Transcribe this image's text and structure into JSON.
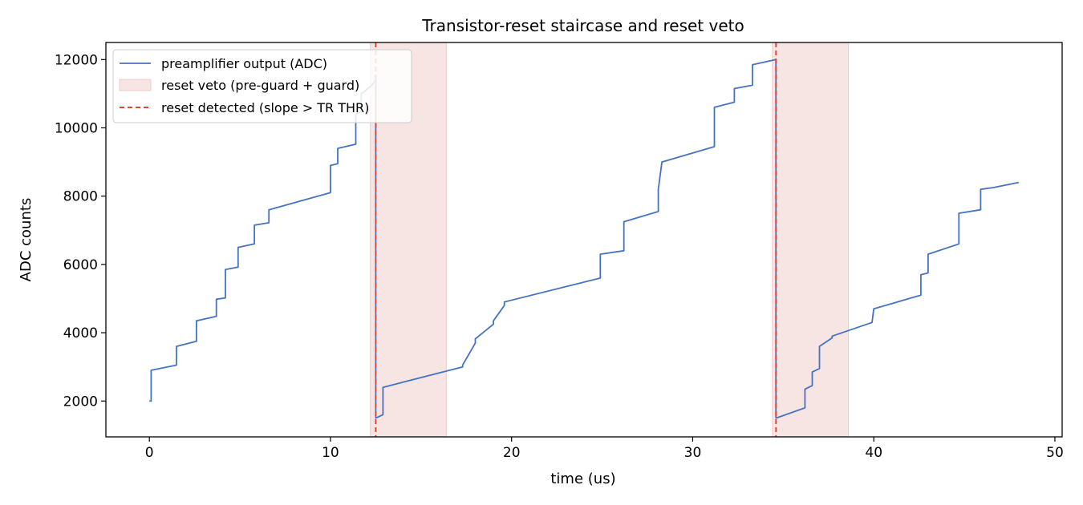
{
  "chart_data": {
    "type": "line",
    "title": "Transistor-reset staircase and reset veto",
    "xlabel": "time (us)",
    "ylabel": "ADC counts",
    "xlim": [
      -2.4,
      50.4
    ],
    "ylim": [
      950,
      12500
    ],
    "xticks": [
      0,
      10,
      20,
      30,
      40,
      50
    ],
    "yticks": [
      2000,
      4000,
      6000,
      8000,
      10000,
      12000
    ],
    "grid": false,
    "legend_position": "top-left",
    "series": [
      {
        "name": "preamplifier output (ADC)",
        "color": "#4472c4",
        "x": [
          0.0,
          0.1,
          0.1,
          1.5,
          1.5,
          2.6,
          2.6,
          3.7,
          3.7,
          4.2,
          4.2,
          4.9,
          4.9,
          5.8,
          5.8,
          6.6,
          6.6,
          10.0,
          10.0,
          10.4,
          10.4,
          11.4,
          11.4,
          11.7,
          11.7,
          12.2,
          12.5,
          12.5,
          12.9,
          12.9,
          17.3,
          17.3,
          18.0,
          18.0,
          19.0,
          19.0,
          19.6,
          19.6,
          24.9,
          24.9,
          26.2,
          26.2,
          28.1,
          28.1,
          28.3,
          28.3,
          31.2,
          31.2,
          32.3,
          32.3,
          33.3,
          33.3,
          34.6,
          34.6,
          36.2,
          36.2,
          36.6,
          36.6,
          37.0,
          37.0,
          37.7,
          37.7,
          39.9,
          39.9,
          40.0,
          40.0,
          42.6,
          42.6,
          43.0,
          43.0,
          44.7,
          44.7,
          45.9,
          45.9,
          46.6,
          46.6,
          48.0
        ],
        "y": [
          2000,
          2000,
          2900,
          3050,
          3600,
          3750,
          4350,
          4480,
          4980,
          5020,
          5850,
          5920,
          6500,
          6600,
          7150,
          7220,
          7600,
          8100,
          8900,
          8950,
          9400,
          9520,
          10400,
          10480,
          11000,
          11200,
          11400,
          1500,
          1600,
          2400,
          3000,
          3050,
          3700,
          3820,
          4250,
          4350,
          4800,
          4900,
          5600,
          6300,
          6400,
          7250,
          7550,
          8200,
          9000,
          9000,
          9450,
          10600,
          10750,
          11150,
          11250,
          11850,
          12000,
          1500,
          1800,
          2350,
          2450,
          2850,
          2950,
          3600,
          3850,
          3900,
          4300,
          4300,
          4700,
          4700,
          5100,
          5700,
          5750,
          6300,
          6600,
          7500,
          7600,
          8200,
          8250,
          8250,
          8400
        ]
      },
      {
        "name": "reset veto (pre-guard + guard)",
        "color": "#e8b4b0",
        "regions": [
          [
            12.2,
            16.4
          ],
          [
            34.4,
            38.6
          ]
        ]
      },
      {
        "name": "reset detected (slope > TR THR)",
        "color": "#d94a3a",
        "vlines": [
          12.5,
          34.6
        ]
      }
    ]
  }
}
